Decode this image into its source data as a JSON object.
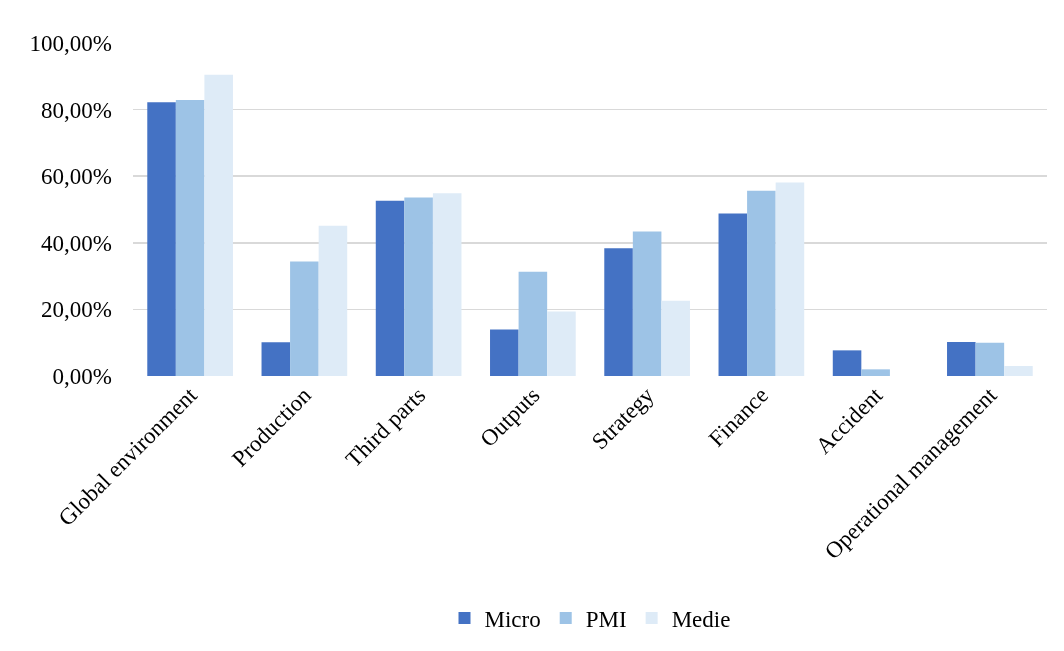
{
  "chart_data": {
    "type": "bar",
    "categories": [
      "Global environment",
      "Production",
      "Third parts",
      "Outputs",
      "Strategy",
      "Finance",
      "Accident",
      "Operational management"
    ],
    "series": [
      {
        "name": "Micro",
        "color": "#4472c4",
        "values": [
          82.2,
          10.1,
          52.6,
          14.0,
          38.4,
          48.8,
          7.7,
          10.2
        ]
      },
      {
        "name": "PMI",
        "color": "#9dc3e6",
        "values": [
          82.9,
          34.4,
          53.6,
          31.3,
          43.4,
          55.6,
          2.0,
          10.0
        ]
      },
      {
        "name": "Medie",
        "color": "#deebf7",
        "values": [
          90.5,
          45.1,
          54.9,
          19.4,
          22.6,
          58.1,
          0,
          3.0
        ]
      }
    ],
    "ylim": [
      0,
      100
    ],
    "yticks": [
      {
        "value": 0,
        "label": "0,00%"
      },
      {
        "value": 20,
        "label": "20,00%"
      },
      {
        "value": 40,
        "label": "40,00%"
      },
      {
        "value": 60,
        "label": "60,00%"
      },
      {
        "value": 80,
        "label": "80,00%"
      },
      {
        "value": 100,
        "label": "100,00%"
      }
    ],
    "grid": "y",
    "legend": "bottom"
  }
}
